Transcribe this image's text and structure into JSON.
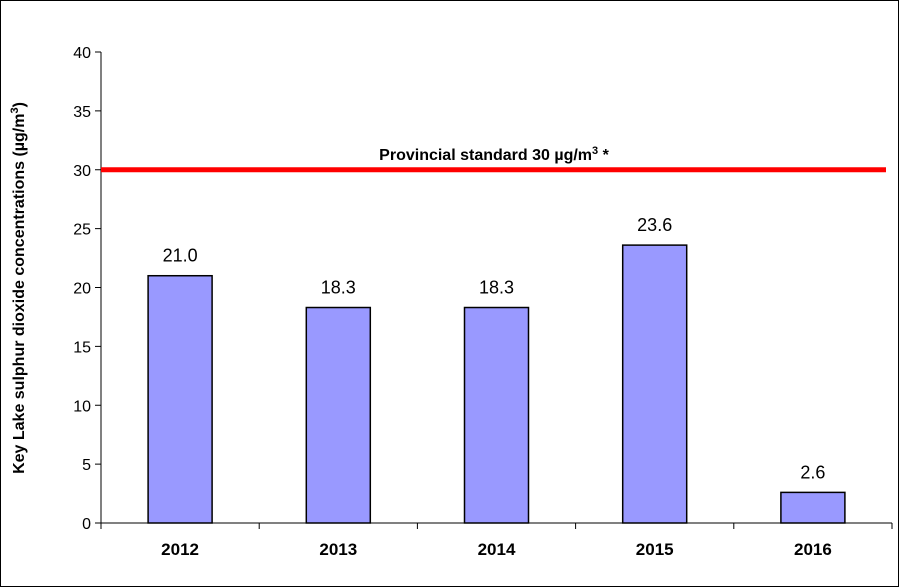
{
  "chart_data": {
    "type": "bar",
    "title": "",
    "xlabel": "",
    "ylabel": "Key Lake sulphur dioxide concentrations (µg/m",
    "ylabel_sup": "3",
    "ylabel_end": ")",
    "categories": [
      "2012",
      "2013",
      "2014",
      "2015",
      "2016"
    ],
    "values": [
      21.0,
      18.3,
      18.3,
      23.6,
      2.6
    ],
    "data_labels": [
      "21.0",
      "18.3",
      "18.3",
      "23.6",
      "2.6"
    ],
    "ylim": [
      0,
      40
    ],
    "yticks": [
      0,
      5,
      10,
      15,
      20,
      25,
      30,
      35,
      40
    ],
    "grid": false,
    "legend": "none",
    "bar_color": "#9999ff",
    "reference_line": {
      "value": 30,
      "color": "#ff0000",
      "label": "Provincial standard 30 µg/m",
      "label_sup": "3",
      "label_end": " *"
    }
  }
}
